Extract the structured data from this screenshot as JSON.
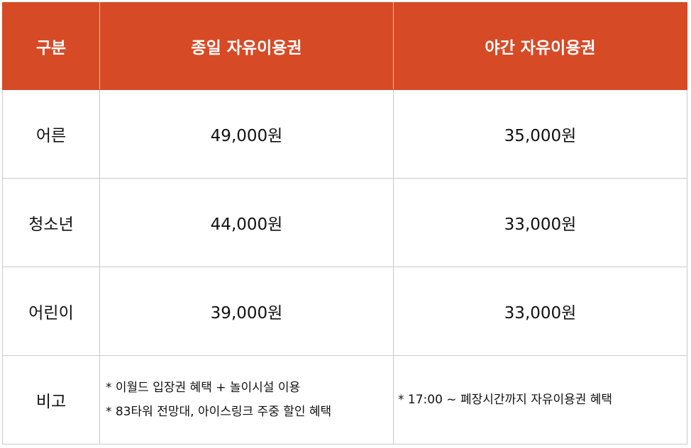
{
  "header": {
    "category": "구분",
    "day_pass": "종일 자유이용권",
    "night_pass": "야간 자유이용권"
  },
  "rows": [
    {
      "label": "어른",
      "day_price": "49,000원",
      "night_price": "35,000원"
    },
    {
      "label": "청소년",
      "day_price": "44,000원",
      "night_price": "33,000원"
    },
    {
      "label": "어린이",
      "day_price": "39,000원",
      "night_price": "33,000원"
    }
  ],
  "notes": {
    "label": "비고",
    "day_notes": [
      "* 이월드 입장권 혜택 + 놀이시설 이용",
      "* 83타워 전망대, 아이스링크 주중 할인 혜택"
    ],
    "night_note": "* 17:00 ~ 폐장시간까지 자유이용권 혜택"
  },
  "colors": {
    "header_bg": "#d74a26",
    "header_text": "#ffffff",
    "border": "#c9c9c9"
  }
}
